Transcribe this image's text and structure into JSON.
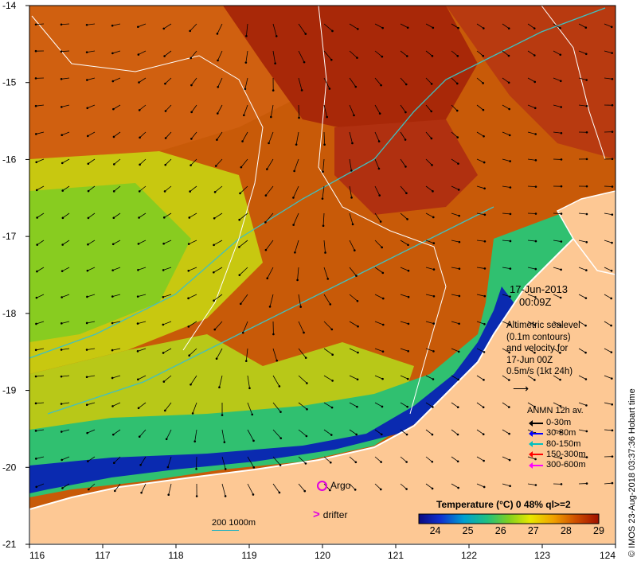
{
  "map": {
    "lon_ticks": [
      "116",
      "117",
      "118",
      "119",
      "120",
      "121",
      "122",
      "123",
      "124"
    ],
    "lat_ticks": [
      "-14",
      "-15",
      "-16",
      "-17",
      "-18",
      "-19",
      "-20",
      "-21"
    ],
    "lon_range": [
      116,
      124
    ],
    "lat_range": [
      -21,
      -14
    ],
    "land_color": "#fdc894",
    "coast_color": "#ffffff",
    "isobath_color": "#40c0c0",
    "contour_color": "#ffffff"
  },
  "timestamp": {
    "date": "17-Jun-2013",
    "time": "00:09Z"
  },
  "altimetry": {
    "line1": "Altimetric sealevel",
    "line2": "(0.1m contours)",
    "line3": "and velocity for",
    "line4": "17-Jun 00Z",
    "line5": "0.5m/s (1kt 24h)"
  },
  "anmn": {
    "title": "ANMN 12h av.",
    "items": [
      {
        "label": "0-30m",
        "color": "#000000"
      },
      {
        "label": "30-80m",
        "color": "#0000ff"
      },
      {
        "label": "80-150m",
        "color": "#00c0c0"
      },
      {
        "label": "150-300m",
        "color": "#ff0000"
      },
      {
        "label": "300-600m",
        "color": "#ff00ff"
      }
    ]
  },
  "symbols": {
    "argo": "Argo",
    "drifter": "drifter",
    "scale_label": "200  1000m"
  },
  "colorbar": {
    "title": "Temperature (°C) 0 48% ql>=2",
    "ticks": [
      "24",
      "25",
      "26",
      "27",
      "28",
      "29"
    ],
    "range": [
      23.5,
      29
    ]
  },
  "credit": "© IMOS 23-Aug-2018 03:37:36 Hobart time"
}
